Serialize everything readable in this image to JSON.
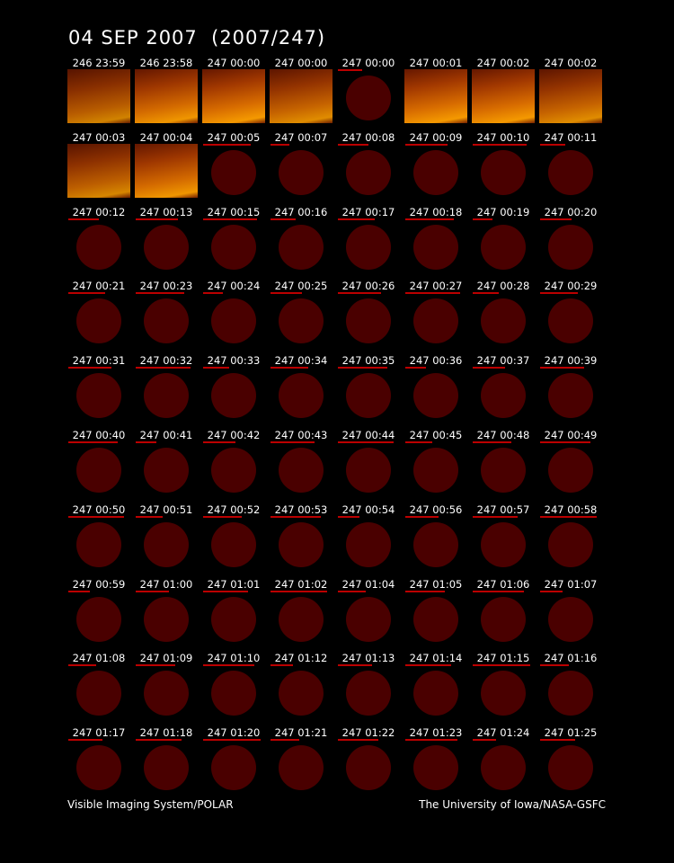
{
  "title": "04 SEP 2007  (2007/247)",
  "footer": {
    "left": "Visible Imaging System/POLAR",
    "right": "The University of Iowa/NASA-GSFC"
  },
  "colors": {
    "background": "#000000",
    "disc": "#4a0000",
    "underline": "#bb0000",
    "aurora_bright": "#ffa000",
    "aurora_dark": "#6a1800"
  },
  "rows": [
    [
      {
        "label": "246 23:59",
        "kind": "frame",
        "intensity": 0.55
      },
      {
        "label": "246 23:58",
        "kind": "frame",
        "intensity": 0.85
      },
      {
        "label": "247 00:00",
        "kind": "frame",
        "intensity": 0.9
      },
      {
        "label": "247 00:00",
        "kind": "frame",
        "intensity": 0.7
      },
      {
        "label": "247 00:00",
        "kind": "disc"
      },
      {
        "label": "247 00:01",
        "kind": "frame",
        "intensity": 0.9
      },
      {
        "label": "247 00:02",
        "kind": "frame",
        "intensity": 0.9
      },
      {
        "label": "247 00:02",
        "kind": "frame",
        "intensity": 0.7
      }
    ],
    [
      {
        "label": "247 00:03",
        "kind": "frame",
        "intensity": 0.6
      },
      {
        "label": "247 00:04",
        "kind": "frame",
        "intensity": 0.85
      },
      {
        "label": "247 00:05",
        "kind": "disc"
      },
      {
        "label": "247 00:07",
        "kind": "disc"
      },
      {
        "label": "247 00:08",
        "kind": "disc"
      },
      {
        "label": "247 00:09",
        "kind": "disc"
      },
      {
        "label": "247 00:10",
        "kind": "disc"
      },
      {
        "label": "247 00:11",
        "kind": "disc"
      }
    ],
    [
      {
        "label": "247 00:12",
        "kind": "disc"
      },
      {
        "label": "247 00:13",
        "kind": "disc"
      },
      {
        "label": "247 00:15",
        "kind": "disc"
      },
      {
        "label": "247 00:16",
        "kind": "disc"
      },
      {
        "label": "247 00:17",
        "kind": "disc"
      },
      {
        "label": "247 00:18",
        "kind": "disc"
      },
      {
        "label": "247 00:19",
        "kind": "disc"
      },
      {
        "label": "247 00:20",
        "kind": "disc"
      }
    ],
    [
      {
        "label": "247 00:21",
        "kind": "disc"
      },
      {
        "label": "247 00:23",
        "kind": "disc"
      },
      {
        "label": "247 00:24",
        "kind": "disc"
      },
      {
        "label": "247 00:25",
        "kind": "disc"
      },
      {
        "label": "247 00:26",
        "kind": "disc"
      },
      {
        "label": "247 00:27",
        "kind": "disc"
      },
      {
        "label": "247 00:28",
        "kind": "disc"
      },
      {
        "label": "247 00:29",
        "kind": "disc"
      }
    ],
    [
      {
        "label": "247 00:31",
        "kind": "disc"
      },
      {
        "label": "247 00:32",
        "kind": "disc"
      },
      {
        "label": "247 00:33",
        "kind": "disc"
      },
      {
        "label": "247 00:34",
        "kind": "disc"
      },
      {
        "label": "247 00:35",
        "kind": "disc"
      },
      {
        "label": "247 00:36",
        "kind": "disc"
      },
      {
        "label": "247 00:37",
        "kind": "disc"
      },
      {
        "label": "247 00:39",
        "kind": "disc"
      }
    ],
    [
      {
        "label": "247 00:40",
        "kind": "disc"
      },
      {
        "label": "247 00:41",
        "kind": "disc"
      },
      {
        "label": "247 00:42",
        "kind": "disc"
      },
      {
        "label": "247 00:43",
        "kind": "disc"
      },
      {
        "label": "247 00:44",
        "kind": "disc"
      },
      {
        "label": "247 00:45",
        "kind": "disc"
      },
      {
        "label": "247 00:48",
        "kind": "disc"
      },
      {
        "label": "247 00:49",
        "kind": "disc"
      }
    ],
    [
      {
        "label": "247 00:50",
        "kind": "disc"
      },
      {
        "label": "247 00:51",
        "kind": "disc"
      },
      {
        "label": "247 00:52",
        "kind": "disc"
      },
      {
        "label": "247 00:53",
        "kind": "disc"
      },
      {
        "label": "247 00:54",
        "kind": "disc"
      },
      {
        "label": "247 00:56",
        "kind": "disc"
      },
      {
        "label": "247 00:57",
        "kind": "disc"
      },
      {
        "label": "247 00:58",
        "kind": "disc"
      }
    ],
    [
      {
        "label": "247 00:59",
        "kind": "disc"
      },
      {
        "label": "247 01:00",
        "kind": "disc"
      },
      {
        "label": "247 01:01",
        "kind": "disc"
      },
      {
        "label": "247 01:02",
        "kind": "disc"
      },
      {
        "label": "247 01:04",
        "kind": "disc"
      },
      {
        "label": "247 01:05",
        "kind": "disc"
      },
      {
        "label": "247 01:06",
        "kind": "disc"
      },
      {
        "label": "247 01:07",
        "kind": "disc"
      }
    ],
    [
      {
        "label": "247 01:08",
        "kind": "disc"
      },
      {
        "label": "247 01:09",
        "kind": "disc"
      },
      {
        "label": "247 01:10",
        "kind": "disc"
      },
      {
        "label": "247 01:12",
        "kind": "disc"
      },
      {
        "label": "247 01:13",
        "kind": "disc"
      },
      {
        "label": "247 01:14",
        "kind": "disc"
      },
      {
        "label": "247 01:15",
        "kind": "disc"
      },
      {
        "label": "247 01:16",
        "kind": "disc"
      }
    ],
    [
      {
        "label": "247 01:17",
        "kind": "disc"
      },
      {
        "label": "247 01:18",
        "kind": "disc"
      },
      {
        "label": "247 01:20",
        "kind": "disc"
      },
      {
        "label": "247 01:21",
        "kind": "disc"
      },
      {
        "label": "247 01:22",
        "kind": "disc"
      },
      {
        "label": "247 01:23",
        "kind": "disc"
      },
      {
        "label": "247 01:24",
        "kind": "disc"
      },
      {
        "label": "247 01:25",
        "kind": "disc"
      }
    ]
  ]
}
